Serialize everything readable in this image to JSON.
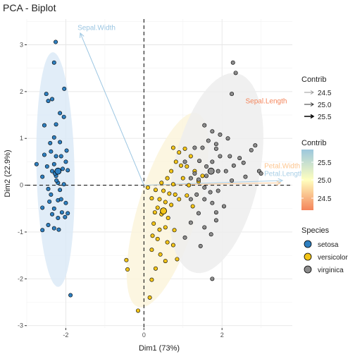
{
  "chart_data": {
    "type": "scatter",
    "title": "PCA - Biplot",
    "xlabel": "Dim1 (73%)",
    "ylabel": "Dim2 (22.9%)",
    "xlim": [
      -3.0,
      3.8
    ],
    "ylim": [
      -3.05,
      3.55
    ],
    "x_ticks": [
      -2,
      0,
      2
    ],
    "y_ticks": [
      -3,
      -2,
      -1,
      0,
      1,
      2,
      3
    ],
    "grid": true,
    "reference_lines": {
      "x": 0,
      "y": 0,
      "style": "dashed"
    },
    "series": [
      {
        "name": "setosa",
        "color": "#2E7FC0",
        "ellipse_color": "#DCEAF7",
        "centroid": [
          -2.2,
          0.3
        ],
        "points": [
          [
            -2.26,
            3.06
          ],
          [
            -2.3,
            2.62
          ],
          [
            -2.04,
            2.06
          ],
          [
            -2.5,
            1.95
          ],
          [
            -2.35,
            1.84
          ],
          [
            -2.15,
            1.54
          ],
          [
            -2.05,
            1.46
          ],
          [
            -2.45,
            1.8
          ],
          [
            -2.25,
            1.3
          ],
          [
            -2.55,
            1.28
          ],
          [
            -2.3,
            1.02
          ],
          [
            -2.4,
            0.9
          ],
          [
            -2.15,
            0.92
          ],
          [
            -1.98,
            0.74
          ],
          [
            -2.38,
            0.72
          ],
          [
            -2.25,
            0.62
          ],
          [
            -2.12,
            0.62
          ],
          [
            -2.55,
            0.65
          ],
          [
            -2.48,
            0.4
          ],
          [
            -2.35,
            0.3
          ],
          [
            -2.08,
            0.35
          ],
          [
            -1.95,
            0.32
          ],
          [
            -2.75,
            0.45
          ],
          [
            -2.6,
            0.18
          ],
          [
            -2.25,
            0.2
          ],
          [
            -2.28,
            0.25
          ],
          [
            -2.0,
            0.5
          ],
          [
            -2.3,
            0.45
          ],
          [
            -2.2,
            0.05
          ],
          [
            -2.05,
            0.02
          ],
          [
            -2.45,
            -0.08
          ],
          [
            -2.15,
            -0.1
          ],
          [
            -2.42,
            -0.35
          ],
          [
            -2.2,
            -0.32
          ],
          [
            -2.0,
            -0.38
          ],
          [
            -2.6,
            -0.48
          ],
          [
            -2.3,
            -0.5
          ],
          [
            -2.1,
            -0.58
          ],
          [
            -2.35,
            -0.62
          ],
          [
            -2.2,
            -0.7
          ],
          [
            -2.02,
            -0.68
          ],
          [
            -2.45,
            -0.85
          ],
          [
            -2.3,
            -0.92
          ],
          [
            -2.6,
            -0.96
          ],
          [
            -2.18,
            -0.95
          ],
          [
            -1.95,
            -0.6
          ],
          [
            -2.38,
            -0.2
          ],
          [
            -2.12,
            -0.3
          ],
          [
            -2.24,
            0.1
          ],
          [
            -1.88,
            -2.35
          ]
        ]
      },
      {
        "name": "versicolor",
        "color": "#F2C418",
        "ellipse_color": "#FBF5DC",
        "centroid": [
          0.5,
          -0.55
        ],
        "points": [
          [
            0.75,
            0.8
          ],
          [
            0.9,
            0.7
          ],
          [
            1.05,
            0.78
          ],
          [
            1.2,
            0.62
          ],
          [
            0.82,
            0.5
          ],
          [
            0.95,
            0.42
          ],
          [
            1.1,
            0.4
          ],
          [
            0.7,
            0.3
          ],
          [
            1.3,
            0.3
          ],
          [
            1.5,
            0.2
          ],
          [
            0.6,
            0.15
          ],
          [
            1.0,
            0.15
          ],
          [
            0.45,
            0.05
          ],
          [
            0.75,
            0.02
          ],
          [
            1.15,
            0.0
          ],
          [
            1.4,
            0.08
          ],
          [
            0.1,
            -0.05
          ],
          [
            0.3,
            -0.1
          ],
          [
            0.5,
            -0.12
          ],
          [
            0.65,
            -0.18
          ],
          [
            0.8,
            -0.2
          ],
          [
            0.2,
            -0.28
          ],
          [
            0.4,
            -0.3
          ],
          [
            0.55,
            -0.36
          ],
          [
            0.7,
            -0.42
          ],
          [
            0.35,
            -0.48
          ],
          [
            0.9,
            -0.3
          ],
          [
            1.1,
            -0.22
          ],
          [
            1.25,
            -0.45
          ],
          [
            0.28,
            -0.58
          ],
          [
            0.45,
            -0.62
          ],
          [
            0.62,
            -0.7
          ],
          [
            0.25,
            -0.82
          ],
          [
            0.4,
            -0.95
          ],
          [
            0.55,
            -0.9
          ],
          [
            0.78,
            -0.96
          ],
          [
            0.22,
            -1.08
          ],
          [
            0.35,
            -1.15
          ],
          [
            0.6,
            -1.22
          ],
          [
            0.75,
            -1.28
          ],
          [
            0.2,
            -1.38
          ],
          [
            0.42,
            -1.48
          ],
          [
            0.55,
            -1.62
          ],
          [
            0.85,
            -1.58
          ],
          [
            0.3,
            -1.78
          ],
          [
            -0.45,
            -1.6
          ],
          [
            -0.42,
            -1.8
          ],
          [
            0.2,
            -2.02
          ],
          [
            0.15,
            -2.4
          ],
          [
            -0.15,
            -2.68
          ]
        ]
      },
      {
        "name": "virginica",
        "color": "#8C8C8C",
        "ellipse_color": "#EDEDED",
        "centroid": [
          1.72,
          0.3
        ],
        "points": [
          [
            2.28,
            2.62
          ],
          [
            2.35,
            2.4
          ],
          [
            2.25,
            1.95
          ],
          [
            2.15,
            1.0
          ],
          [
            1.75,
            1.15
          ],
          [
            1.55,
            1.28
          ],
          [
            1.95,
            1.08
          ],
          [
            1.65,
            0.95
          ],
          [
            1.85,
            0.88
          ],
          [
            2.45,
            0.58
          ],
          [
            2.75,
            0.75
          ],
          [
            2.85,
            0.85
          ],
          [
            2.95,
            0.3
          ],
          [
            3.0,
            0.25
          ],
          [
            2.55,
            0.48
          ],
          [
            2.3,
            0.42
          ],
          [
            1.85,
            0.78
          ],
          [
            1.95,
            0.62
          ],
          [
            2.2,
            0.62
          ],
          [
            1.5,
            0.8
          ],
          [
            1.3,
            0.8
          ],
          [
            1.75,
            0.5
          ],
          [
            1.42,
            0.52
          ],
          [
            1.6,
            0.4
          ],
          [
            1.9,
            0.3
          ],
          [
            2.1,
            0.3
          ],
          [
            2.25,
            0.1
          ],
          [
            2.6,
            0.18
          ],
          [
            1.6,
            0.2
          ],
          [
            1.3,
            0.25
          ],
          [
            1.05,
            0.5
          ],
          [
            1.2,
            0.15
          ],
          [
            1.4,
            0.12
          ],
          [
            1.55,
            -0.05
          ],
          [
            1.7,
            -0.15
          ],
          [
            1.9,
            -0.12
          ],
          [
            1.35,
            -0.2
          ],
          [
            1.2,
            -0.3
          ],
          [
            1.55,
            -0.3
          ],
          [
            1.75,
            -0.38
          ],
          [
            2.05,
            -0.45
          ],
          [
            1.85,
            -0.58
          ],
          [
            1.4,
            -0.6
          ],
          [
            1.2,
            -0.8
          ],
          [
            1.55,
            -0.9
          ],
          [
            1.85,
            -0.75
          ],
          [
            1.72,
            -1.05
          ],
          [
            1.05,
            -1.12
          ],
          [
            1.45,
            -1.3
          ],
          [
            1.75,
            -2.0
          ]
        ]
      }
    ],
    "variables": [
      {
        "name": "Sepal.Length",
        "x": 0.0,
        "y": 0.0,
        "label_x": 2.6,
        "label_y": 1.75,
        "color": "#F4845A"
      },
      {
        "name": "Sepal.Width",
        "x": -1.63,
        "y": 3.25,
        "label_x": -1.7,
        "label_y": 3.32,
        "color": "#9CC6E2"
      },
      {
        "name": "Petal.Width",
        "x": 3.5,
        "y": 0.05,
        "label_x": 3.08,
        "label_y": 0.36,
        "color": "#FDC690"
      },
      {
        "name": "Petal.Length",
        "x": 3.55,
        "y": 0.1,
        "label_x": 3.08,
        "label_y": 0.2,
        "color": "#A9CFE6"
      }
    ],
    "legend": {
      "placement": "right",
      "contrib": {
        "title": "Contrib",
        "entries": [
          "24.5",
          "25.0",
          "25.5"
        ]
      },
      "contrib_scale": {
        "title": "Contrib",
        "ticks": [
          "25.5",
          "25.0",
          "24.5"
        ],
        "colors": [
          "#9CC7DD",
          "#FFFFBF",
          "#F4845A"
        ]
      },
      "species": {
        "title": "Species",
        "entries": [
          "setosa",
          "versicolor",
          "virginica"
        ]
      }
    }
  }
}
